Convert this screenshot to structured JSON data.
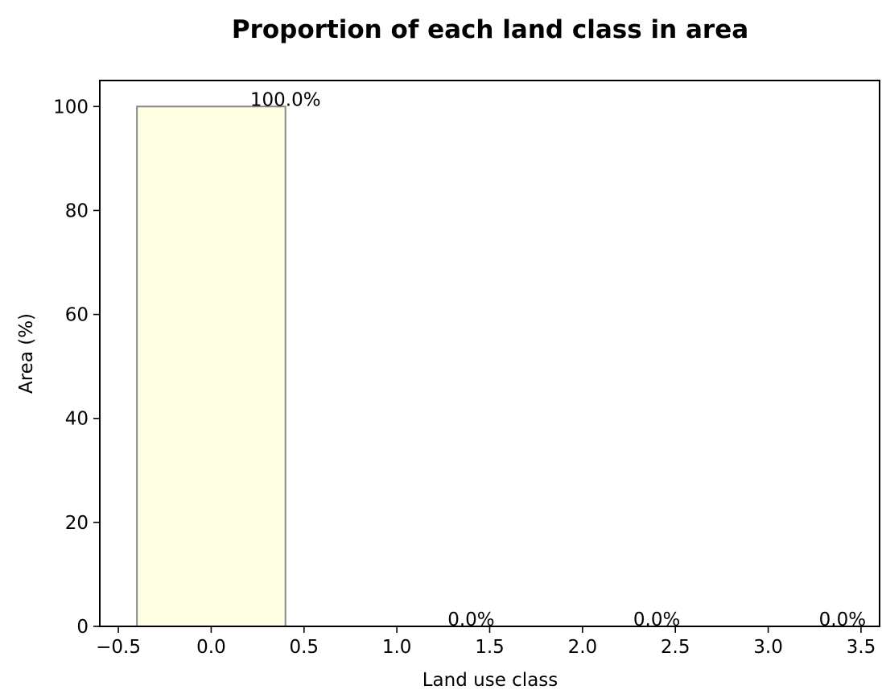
{
  "chart_data": {
    "type": "bar",
    "title": "Proportion of each land class in area",
    "xlabel": "Land use class",
    "ylabel": "Area (%)",
    "x": [
      0,
      1,
      2,
      3
    ],
    "values": [
      100.0,
      0.0,
      0.0,
      0.0
    ],
    "bar_width": 0.8,
    "bar_labels": [
      "100.0%",
      "0.0%",
      "0.0%",
      "0.0%"
    ],
    "xlim": [
      -0.6,
      3.6
    ],
    "ylim": [
      0,
      105
    ],
    "xticks": [
      -0.5,
      0.0,
      0.5,
      1.0,
      1.5,
      2.0,
      2.5,
      3.0,
      3.5
    ],
    "xtick_labels": [
      "−0.5",
      "0.0",
      "0.5",
      "1.0",
      "1.5",
      "2.0",
      "2.5",
      "3.0",
      "3.5"
    ],
    "yticks": [
      0,
      20,
      40,
      60,
      80,
      100
    ],
    "ytick_labels": [
      "0",
      "20",
      "40",
      "60",
      "80",
      "100"
    ],
    "grid": false,
    "bar_fill": "#FFFFE4",
    "bar_edge": "#888888"
  }
}
